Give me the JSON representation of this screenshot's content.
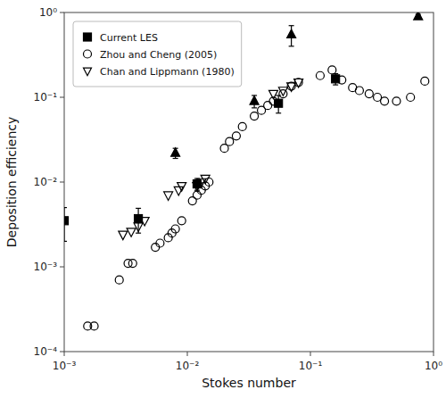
{
  "chart_data": {
    "type": "scatter",
    "xlabel": "Stokes number",
    "ylabel": "Deposition efficiency",
    "log": true,
    "grid": false,
    "legend": "upper left",
    "xlim": [
      0.001,
      1
    ],
    "ylim": [
      0.0001,
      1
    ],
    "xticks": [
      {
        "value": 0.001,
        "label": "10⁻³"
      },
      {
        "value": 0.01,
        "label": "10⁻²"
      },
      {
        "value": 0.1,
        "label": "10⁻¹"
      },
      {
        "value": 1,
        "label": "10⁰"
      }
    ],
    "yticks": [
      {
        "value": 0.0001,
        "label": "10⁻⁴"
      },
      {
        "value": 0.001,
        "label": "10⁻³"
      },
      {
        "value": 0.01,
        "label": "10⁻²"
      },
      {
        "value": 0.1,
        "label": "10⁻¹"
      },
      {
        "value": 1,
        "label": "10⁰"
      }
    ],
    "series": [
      {
        "name": "Current LES",
        "marker": "square",
        "color": "#000000",
        "x": [
          0.001,
          0.004,
          0.012,
          0.055,
          0.16
        ],
        "values": [
          0.0035,
          0.0037,
          0.0095,
          0.085,
          0.165
        ],
        "yerr_lo": [
          0.0015,
          0.0012,
          0.0015,
          0.02,
          0.025
        ],
        "yerr_hi": [
          0.0015,
          0.0012,
          0.0015,
          0.02,
          0.025
        ]
      },
      {
        "marker": "triangle",
        "color": "#000000",
        "x": [
          0.008,
          0.035,
          0.07,
          0.75
        ],
        "values": [
          0.022,
          0.09,
          0.55,
          0.9
        ],
        "yerr_lo": [
          0.003,
          0.015,
          0.15,
          0.05
        ],
        "yerr_hi": [
          0.003,
          0.015,
          0.15,
          0.05
        ]
      },
      {
        "name": "Zhou and Cheng (2005)",
        "marker": "open-circle",
        "color": "#000000",
        "x": [
          0.00155,
          0.00175,
          0.0028,
          0.0033,
          0.0036,
          0.0055,
          0.006,
          0.007,
          0.0075,
          0.008,
          0.009,
          0.011,
          0.012,
          0.013,
          0.014,
          0.015,
          0.02,
          0.022,
          0.025,
          0.028,
          0.035,
          0.04,
          0.045,
          0.05,
          0.06,
          0.07,
          0.08,
          0.12,
          0.15,
          0.18,
          0.22,
          0.25,
          0.3,
          0.35,
          0.4,
          0.5,
          0.65,
          0.85
        ],
        "values": [
          0.0002,
          0.0002,
          0.0007,
          0.0011,
          0.0011,
          0.0017,
          0.0019,
          0.0022,
          0.0025,
          0.0028,
          0.0035,
          0.006,
          0.007,
          0.008,
          0.009,
          0.01,
          0.025,
          0.03,
          0.035,
          0.045,
          0.06,
          0.07,
          0.08,
          0.09,
          0.11,
          0.135,
          0.15,
          0.18,
          0.21,
          0.16,
          0.13,
          0.12,
          0.11,
          0.1,
          0.09,
          0.09,
          0.1,
          0.155
        ]
      },
      {
        "name": "Chan and Lippmann (1980)",
        "marker": "open-triangle-down",
        "color": "#000000",
        "x": [
          0.003,
          0.0035,
          0.004,
          0.0045,
          0.007,
          0.0085,
          0.009,
          0.012,
          0.013,
          0.014,
          0.05,
          0.06,
          0.07,
          0.08
        ],
        "values": [
          0.0024,
          0.0026,
          0.003,
          0.0035,
          0.007,
          0.008,
          0.009,
          0.009,
          0.01,
          0.011,
          0.11,
          0.12,
          0.135,
          0.15
        ]
      }
    ]
  }
}
